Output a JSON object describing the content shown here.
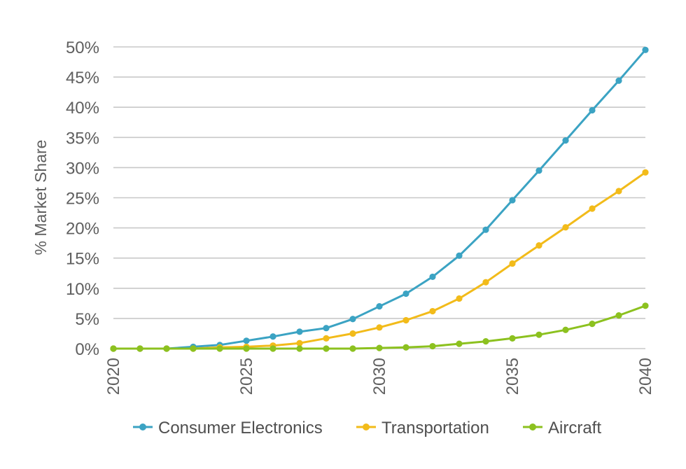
{
  "chart_data": {
    "type": "line",
    "title": "",
    "xlabel": "",
    "ylabel": "% Market Share",
    "x": [
      2020,
      2021,
      2022,
      2023,
      2024,
      2025,
      2026,
      2027,
      2028,
      2029,
      2030,
      2031,
      2032,
      2033,
      2034,
      2035,
      2036,
      2037,
      2038,
      2039,
      2040
    ],
    "xticks": [
      "2020",
      "2025",
      "2030",
      "2035",
      "2040"
    ],
    "xlim": [
      2020,
      2040
    ],
    "ylim": [
      0,
      50
    ],
    "yticks": [
      "0%",
      "5%",
      "10%",
      "15%",
      "20%",
      "25%",
      "30%",
      "35%",
      "40%",
      "45%",
      "50%"
    ],
    "grid": true,
    "legend_position": "bottom",
    "series": [
      {
        "name": "Consumer Electronics",
        "color": "#3ba3c3",
        "values": [
          0,
          0,
          0,
          0.3,
          0.6,
          1.3,
          2.0,
          2.8,
          3.4,
          4.9,
          7.0,
          9.1,
          11.9,
          15.4,
          19.7,
          24.6,
          29.5,
          34.5,
          39.5,
          44.4,
          49.5
        ]
      },
      {
        "name": "Transportation",
        "color": "#f2bb1a",
        "values": [
          0,
          0,
          0,
          0,
          0.2,
          0.3,
          0.5,
          0.9,
          1.7,
          2.5,
          3.5,
          4.7,
          6.2,
          8.3,
          11.0,
          14.1,
          17.1,
          20.1,
          23.2,
          26.1,
          29.2
        ]
      },
      {
        "name": "Aircraft",
        "color": "#8cc11f",
        "values": [
          0,
          0,
          0,
          0,
          0,
          0,
          0,
          0,
          0,
          0,
          0.1,
          0.2,
          0.4,
          0.8,
          1.2,
          1.7,
          2.3,
          3.1,
          4.1,
          5.5,
          7.1
        ]
      }
    ]
  }
}
